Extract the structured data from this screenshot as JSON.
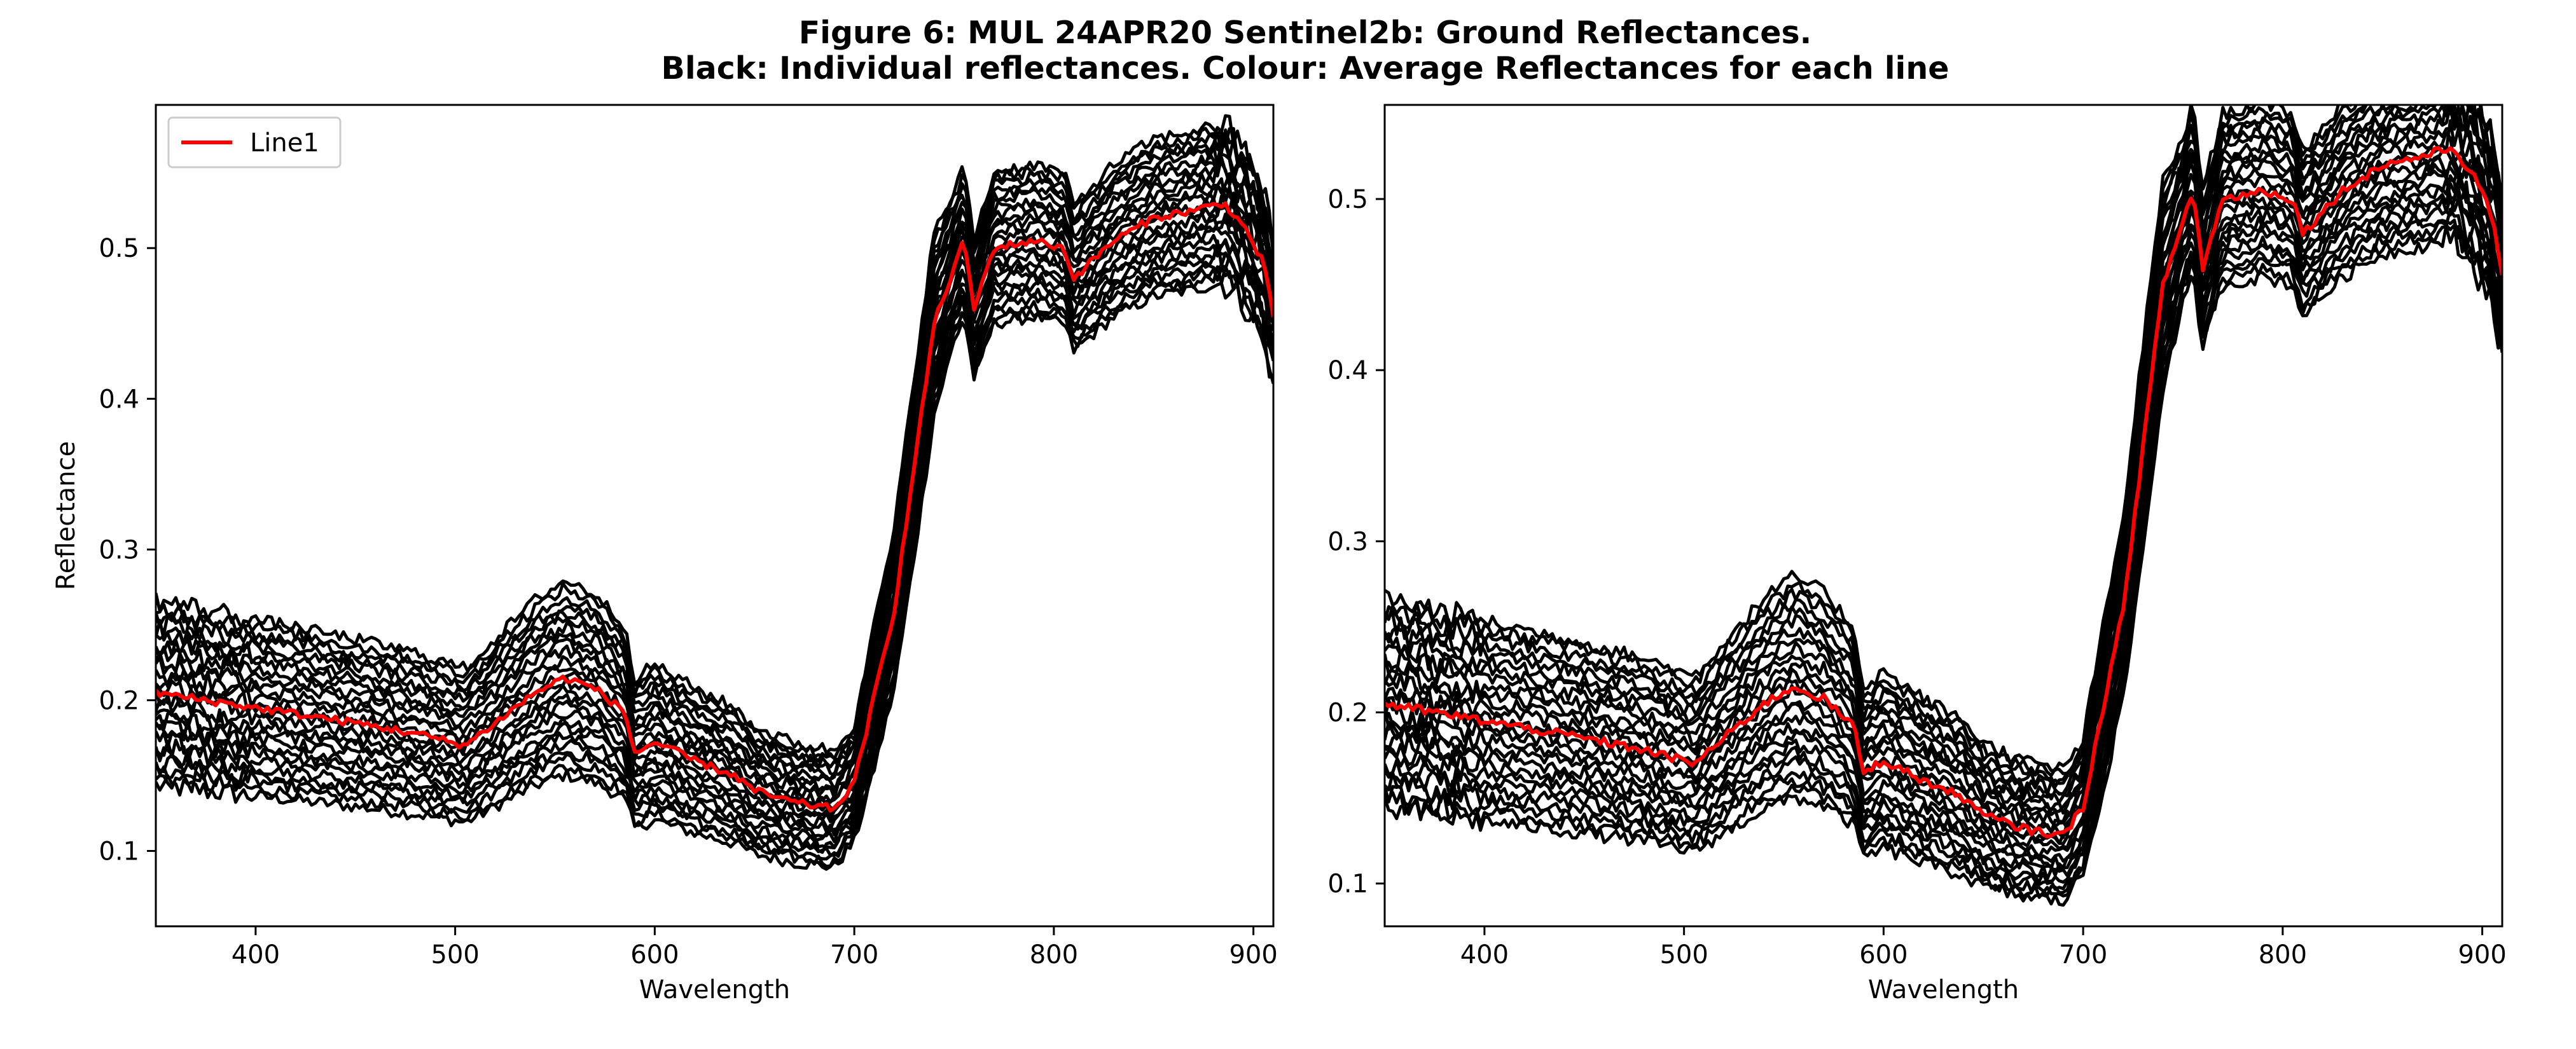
{
  "title_line1": "Figure 6: MUL 24APR20  Sentinel2b: Ground Reflectances.",
  "title_line2": "Black: Individual reflectances. Colour: Average Reflectances for each line",
  "chart_data": [
    {
      "type": "line",
      "xlabel": "Wavelength",
      "ylabel": "Reflectance",
      "xlim": [
        350,
        910
      ],
      "ylim": [
        0.05,
        0.595
      ],
      "xticks": [
        400,
        500,
        600,
        700,
        800,
        900
      ],
      "yticks": [
        0.1,
        0.2,
        0.3,
        0.4,
        0.5
      ],
      "legend": {
        "location": "upper-left",
        "entries": [
          "Line1"
        ]
      },
      "grid": false,
      "individual_color": "#000000",
      "average_color": "#ff0000",
      "individual_count": 26,
      "average_series": {
        "name": "Line1",
        "x": [
          350,
          400,
          450,
          480,
          505,
          520,
          540,
          555,
          570,
          585,
          590,
          600,
          620,
          640,
          650,
          670,
          690,
          700,
          720,
          740,
          755,
          760,
          770,
          790,
          805,
          810,
          830,
          850,
          870,
          885,
          895,
          905,
          910
        ],
        "y": [
          0.205,
          0.195,
          0.185,
          0.178,
          0.17,
          0.185,
          0.205,
          0.215,
          0.208,
          0.192,
          0.165,
          0.172,
          0.16,
          0.15,
          0.14,
          0.132,
          0.128,
          0.145,
          0.26,
          0.45,
          0.505,
          0.46,
          0.5,
          0.505,
          0.5,
          0.48,
          0.505,
          0.52,
          0.525,
          0.53,
          0.515,
          0.49,
          0.455
        ]
      }
    },
    {
      "type": "line",
      "xlabel": "Wavelength",
      "ylabel": "",
      "xlim": [
        350,
        910
      ],
      "ylim": [
        0.075,
        0.555
      ],
      "xticks": [
        400,
        500,
        600,
        700,
        800,
        900
      ],
      "yticks": [
        0.1,
        0.2,
        0.3,
        0.4,
        0.5
      ],
      "legend": null,
      "grid": false,
      "individual_color": "#000000",
      "average_color": "#ff0000",
      "individual_count": 26,
      "average_series": {
        "name": "",
        "x": [
          350,
          400,
          450,
          480,
          505,
          520,
          540,
          555,
          570,
          585,
          590,
          600,
          620,
          640,
          650,
          670,
          690,
          700,
          720,
          740,
          755,
          760,
          770,
          790,
          805,
          810,
          830,
          850,
          870,
          885,
          895,
          905,
          910
        ],
        "y": [
          0.205,
          0.195,
          0.185,
          0.178,
          0.17,
          0.185,
          0.205,
          0.215,
          0.208,
          0.192,
          0.165,
          0.172,
          0.16,
          0.15,
          0.14,
          0.132,
          0.128,
          0.145,
          0.26,
          0.45,
          0.505,
          0.46,
          0.5,
          0.505,
          0.5,
          0.48,
          0.505,
          0.52,
          0.525,
          0.53,
          0.515,
          0.49,
          0.455
        ]
      }
    }
  ]
}
